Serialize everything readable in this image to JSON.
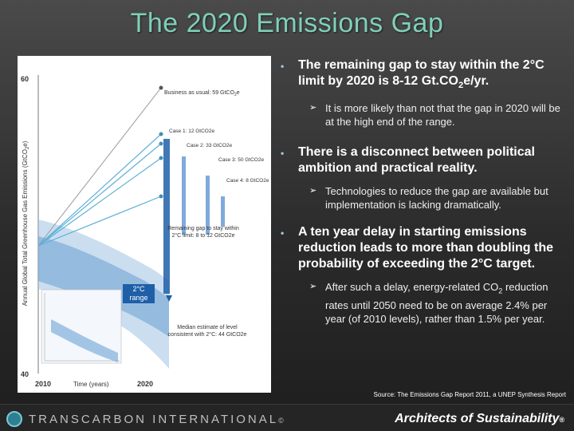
{
  "title": "The 2020 Emissions Gap",
  "chart": {
    "y_axis_label": "Annual Global Total Greenhouse Gas Emissions (GtCO",
    "y_axis_label_sub": "2",
    "y_axis_label_end": "e)",
    "y_top_tick": "60",
    "y_bottom_tick": "40",
    "x_start_tick": "2010",
    "x_label": "Time (years)",
    "x_end_tick": "2020",
    "bau_label": "Business as usual: 59 GtCO",
    "bau_label_sub": "2",
    "bau_label_end": "e",
    "case1_label": "Case 1: 12 GtCO2e",
    "case2_label": "Case 2: 33 GtCO2e",
    "case3_label": "Case 3: 50 GtCO2e",
    "case4_label": "Case 4: 8 GtCO2e",
    "gap_label": "Remaining gap to stay within 2°C limit: 8 to 12 GtCO2e",
    "range_label": "2°C range",
    "median_label": "Median estimate of level consistent with 2°C: 44 GtCO2e"
  },
  "bullets": [
    {
      "text_a": "The remaining gap to stay within the 2°C limit by 2020 is 8-12 Gt.CO",
      "text_sub": "2",
      "text_b": "e/yr.",
      "sub_bullet": "It is more likely than not that the gap in 2020 will be at the high end of the range."
    },
    {
      "text": "There is a disconnect between political ambition and practical reality.",
      "sub_bullet": "Technologies to reduce the gap are available but implementation is lacking dramatically."
    },
    {
      "text": "A ten year delay in starting emissions reduction leads to more than doubling the probability of exceeding the 2°C target.",
      "sub_bullet_a": "After such a delay, energy-related CO",
      "sub_bullet_sub": "2",
      "sub_bullet_b": " reduction rates until 2050 need to be on average 2.4% per year (of 2010 levels), rather than 1.5% per year."
    }
  ],
  "source": "Source: The Emissions Gap Report 2011, a UNEP Synthesis Report",
  "footer": {
    "company": "TRANSCARBON INTERNATIONAL",
    "tagline": "Architects of Sustainability",
    "tagline_mark": "®",
    "company_mark": "©"
  },
  "colors": {
    "title": "#7fd0b8",
    "bau_line": "#999999",
    "case_lines": "#5fb0d8",
    "range_band": "#1e5fa8",
    "arrow": "#2c72c4"
  }
}
